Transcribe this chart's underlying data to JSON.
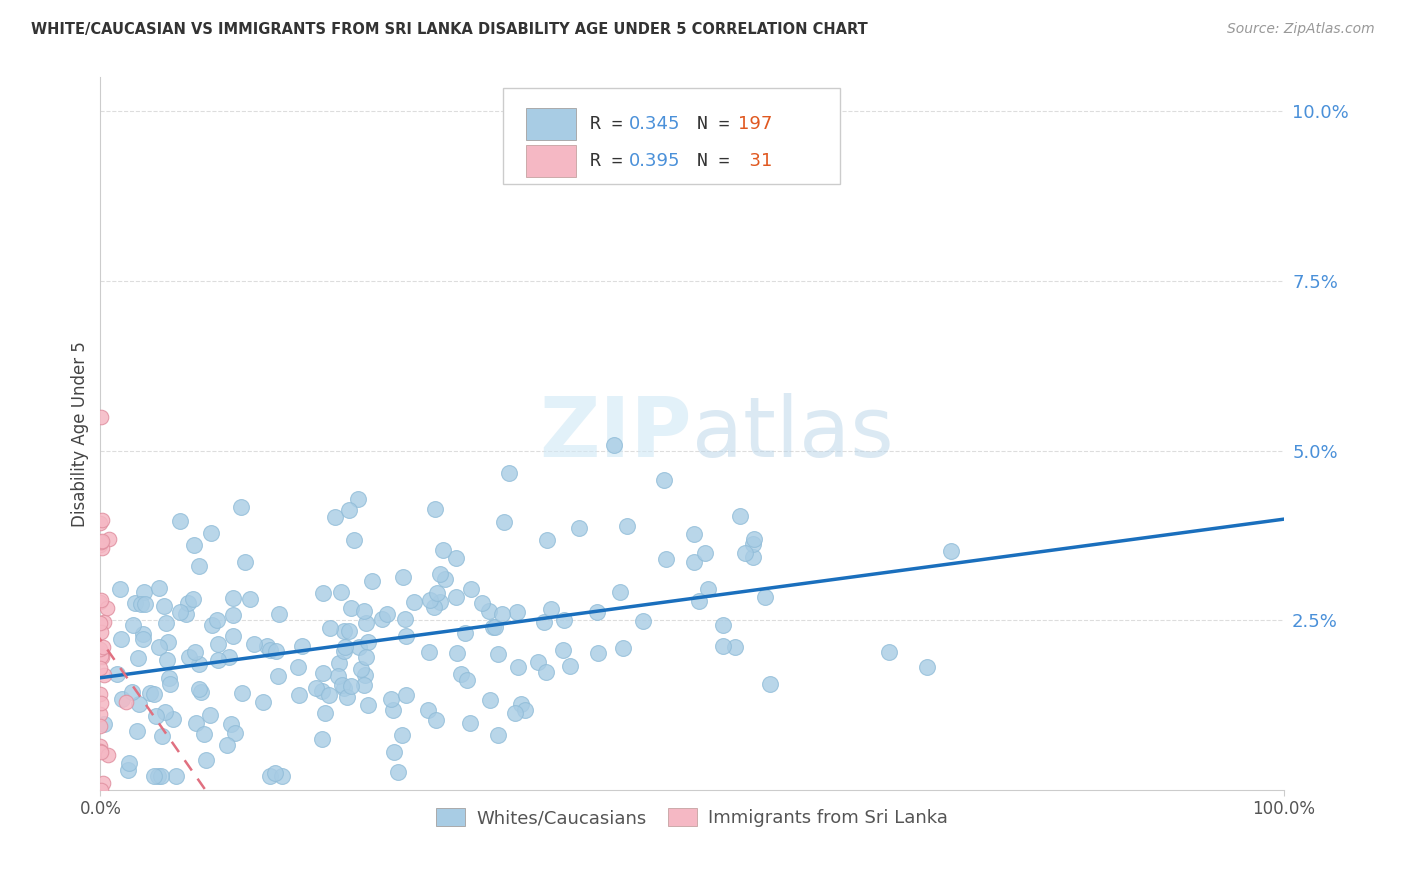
{
  "title": "WHITE/CAUCASIAN VS IMMIGRANTS FROM SRI LANKA DISABILITY AGE UNDER 5 CORRELATION CHART",
  "source": "Source: ZipAtlas.com",
  "ylabel": "Disability Age Under 5",
  "watermark_zip": "ZIP",
  "watermark_atlas": "atlas",
  "blue_R": 0.345,
  "blue_N": 197,
  "pink_R": 0.395,
  "pink_N": 31,
  "blue_color": "#a8cce4",
  "pink_color": "#f5b8c4",
  "blue_line_color": "#1a6fbd",
  "pink_line_color": "#e07080",
  "legend_label_blue": "Whites/Caucasians",
  "legend_label_pink": "Immigrants from Sri Lanka",
  "R_color": "#4a90d9",
  "N_color": "#e05820",
  "xlim": [
    0,
    1.0
  ],
  "ylim": [
    0,
    0.105
  ],
  "yticks": [
    0.025,
    0.05,
    0.075,
    0.1
  ],
  "ytick_labels": [
    "2.5%",
    "5.0%",
    "7.5%",
    "10.0%"
  ],
  "blue_seed": 12,
  "pink_seed": 99
}
